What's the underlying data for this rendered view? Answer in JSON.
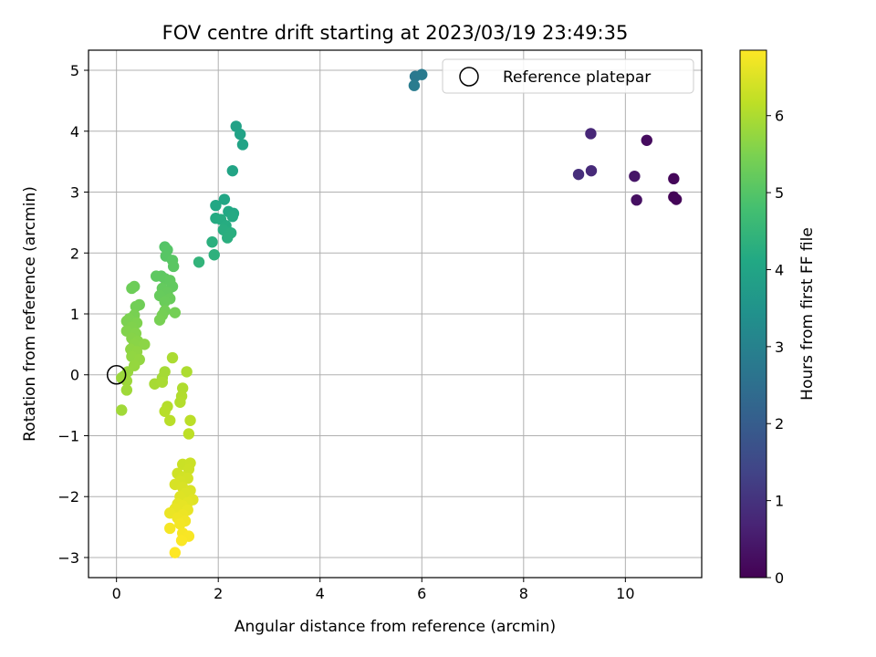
{
  "chart_data": {
    "type": "scatter",
    "title": "FOV centre drift starting at 2023/03/19 23:49:35",
    "xlabel": "Angular distance from reference (arcmin)",
    "ylabel": "Rotation from reference (arcmin)",
    "xlim": [
      -0.55,
      11.5
    ],
    "ylim": [
      -3.33,
      5.33
    ],
    "xticks": [
      0,
      2,
      4,
      6,
      8,
      10
    ],
    "yticks": [
      -3,
      -2,
      -1,
      0,
      1,
      2,
      3,
      4,
      5
    ],
    "grid": true,
    "legend": {
      "placement": "top-right",
      "entries": [
        "Reference platepar"
      ]
    },
    "reference_point": {
      "x": 0,
      "y": 0,
      "label": "Reference platepar"
    },
    "colorbar": {
      "label": "Hours from first FF file",
      "range": [
        0,
        6.85
      ],
      "ticks": [
        0,
        1,
        2,
        3,
        4,
        5,
        6
      ],
      "colormap": "viridis"
    },
    "points": [
      {
        "x": 10.95,
        "y": 2.92,
        "c": 0.05
      },
      {
        "x": 11.0,
        "y": 2.88,
        "c": 0.08
      },
      {
        "x": 10.95,
        "y": 3.22,
        "c": 0.12
      },
      {
        "x": 10.42,
        "y": 3.85,
        "c": 0.2
      },
      {
        "x": 10.22,
        "y": 2.87,
        "c": 0.3
      },
      {
        "x": 10.18,
        "y": 3.26,
        "c": 0.4
      },
      {
        "x": 9.32,
        "y": 3.96,
        "c": 0.75
      },
      {
        "x": 9.33,
        "y": 3.35,
        "c": 0.82
      },
      {
        "x": 9.08,
        "y": 3.29,
        "c": 0.9
      },
      {
        "x": 5.87,
        "y": 4.9,
        "c": 2.75
      },
      {
        "x": 6.0,
        "y": 4.93,
        "c": 2.8
      },
      {
        "x": 5.85,
        "y": 4.75,
        "c": 2.85
      },
      {
        "x": 2.35,
        "y": 4.08,
        "c": 3.9
      },
      {
        "x": 2.43,
        "y": 3.95,
        "c": 3.92
      },
      {
        "x": 2.48,
        "y": 3.78,
        "c": 3.95
      },
      {
        "x": 2.28,
        "y": 3.35,
        "c": 4.0
      },
      {
        "x": 2.12,
        "y": 2.88,
        "c": 4.05
      },
      {
        "x": 1.95,
        "y": 2.78,
        "c": 4.08
      },
      {
        "x": 2.2,
        "y": 2.68,
        "c": 4.1
      },
      {
        "x": 2.3,
        "y": 2.65,
        "c": 4.12
      },
      {
        "x": 2.28,
        "y": 2.6,
        "c": 4.15
      },
      {
        "x": 1.95,
        "y": 2.57,
        "c": 4.18
      },
      {
        "x": 2.05,
        "y": 2.55,
        "c": 4.2
      },
      {
        "x": 2.15,
        "y": 2.45,
        "c": 4.22
      },
      {
        "x": 2.1,
        "y": 2.38,
        "c": 4.25
      },
      {
        "x": 2.25,
        "y": 2.33,
        "c": 4.28
      },
      {
        "x": 2.18,
        "y": 2.25,
        "c": 4.3
      },
      {
        "x": 1.88,
        "y": 2.18,
        "c": 4.32
      },
      {
        "x": 1.92,
        "y": 1.97,
        "c": 4.35
      },
      {
        "x": 1.62,
        "y": 1.85,
        "c": 4.45
      },
      {
        "x": 0.95,
        "y": 2.1,
        "c": 5.0
      },
      {
        "x": 1.0,
        "y": 2.05,
        "c": 5.02
      },
      {
        "x": 0.97,
        "y": 1.95,
        "c": 5.04
      },
      {
        "x": 1.1,
        "y": 1.88,
        "c": 5.06
      },
      {
        "x": 1.12,
        "y": 1.78,
        "c": 5.08
      },
      {
        "x": 0.88,
        "y": 1.62,
        "c": 5.1
      },
      {
        "x": 0.78,
        "y": 1.62,
        "c": 5.12
      },
      {
        "x": 0.95,
        "y": 1.58,
        "c": 5.14
      },
      {
        "x": 1.05,
        "y": 1.55,
        "c": 5.16
      },
      {
        "x": 1.1,
        "y": 1.45,
        "c": 5.18
      },
      {
        "x": 0.9,
        "y": 1.42,
        "c": 5.2
      },
      {
        "x": 1.0,
        "y": 1.35,
        "c": 5.22
      },
      {
        "x": 0.85,
        "y": 1.3,
        "c": 5.24
      },
      {
        "x": 1.05,
        "y": 1.25,
        "c": 5.26
      },
      {
        "x": 0.95,
        "y": 1.2,
        "c": 5.28
      },
      {
        "x": 0.35,
        "y": 1.45,
        "c": 5.3
      },
      {
        "x": 0.3,
        "y": 1.42,
        "c": 5.32
      },
      {
        "x": 0.45,
        "y": 1.15,
        "c": 5.34
      },
      {
        "x": 0.38,
        "y": 1.12,
        "c": 5.36
      },
      {
        "x": 0.95,
        "y": 1.05,
        "c": 5.38
      },
      {
        "x": 1.15,
        "y": 1.02,
        "c": 5.4
      },
      {
        "x": 0.9,
        "y": 0.98,
        "c": 5.42
      },
      {
        "x": 0.85,
        "y": 0.9,
        "c": 5.44
      },
      {
        "x": 0.35,
        "y": 0.98,
        "c": 5.46
      },
      {
        "x": 0.25,
        "y": 0.92,
        "c": 5.48
      },
      {
        "x": 0.2,
        "y": 0.88,
        "c": 5.5
      },
      {
        "x": 0.4,
        "y": 0.85,
        "c": 5.52
      },
      {
        "x": 0.3,
        "y": 0.78,
        "c": 5.54
      },
      {
        "x": 0.2,
        "y": 0.72,
        "c": 5.56
      },
      {
        "x": 0.38,
        "y": 0.68,
        "c": 5.58
      },
      {
        "x": 0.3,
        "y": 0.6,
        "c": 5.6
      },
      {
        "x": 0.42,
        "y": 0.55,
        "c": 5.62
      },
      {
        "x": 0.35,
        "y": 0.5,
        "c": 5.64
      },
      {
        "x": 0.55,
        "y": 0.5,
        "c": 5.66
      },
      {
        "x": 0.28,
        "y": 0.42,
        "c": 5.68
      },
      {
        "x": 0.4,
        "y": 0.38,
        "c": 5.7
      },
      {
        "x": 0.3,
        "y": 0.3,
        "c": 5.72
      },
      {
        "x": 0.45,
        "y": 0.25,
        "c": 5.74
      },
      {
        "x": 0.35,
        "y": 0.15,
        "c": 5.76
      },
      {
        "x": 0.22,
        "y": 0.05,
        "c": 5.78
      },
      {
        "x": 0.15,
        "y": -0.02,
        "c": 5.8
      },
      {
        "x": 0.1,
        "y": -0.05,
        "c": 5.82
      },
      {
        "x": 0.2,
        "y": -0.1,
        "c": 5.84
      },
      {
        "x": 0.2,
        "y": -0.25,
        "c": 5.86
      },
      {
        "x": 0.1,
        "y": -0.58,
        "c": 5.88
      },
      {
        "x": 0.9,
        "y": -0.05,
        "c": 5.9
      },
      {
        "x": 0.95,
        "y": 0.05,
        "c": 5.92
      },
      {
        "x": 0.75,
        "y": -0.15,
        "c": 5.94
      },
      {
        "x": 0.9,
        "y": -0.12,
        "c": 5.96
      },
      {
        "x": 1.1,
        "y": 0.28,
        "c": 5.98
      },
      {
        "x": 1.38,
        "y": 0.05,
        "c": 6.0
      },
      {
        "x": 1.3,
        "y": -0.22,
        "c": 6.02
      },
      {
        "x": 1.28,
        "y": -0.35,
        "c": 6.04
      },
      {
        "x": 1.25,
        "y": -0.45,
        "c": 6.06
      },
      {
        "x": 1.0,
        "y": -0.52,
        "c": 6.08
      },
      {
        "x": 0.95,
        "y": -0.6,
        "c": 6.1
      },
      {
        "x": 1.05,
        "y": -0.75,
        "c": 6.12
      },
      {
        "x": 1.45,
        "y": -0.75,
        "c": 6.14
      },
      {
        "x": 1.42,
        "y": -0.97,
        "c": 6.16
      },
      {
        "x": 1.3,
        "y": -1.47,
        "c": 6.3
      },
      {
        "x": 1.45,
        "y": -1.45,
        "c": 6.32
      },
      {
        "x": 1.42,
        "y": -1.55,
        "c": 6.34
      },
      {
        "x": 1.2,
        "y": -1.62,
        "c": 6.36
      },
      {
        "x": 1.3,
        "y": -1.68,
        "c": 6.38
      },
      {
        "x": 1.4,
        "y": -1.7,
        "c": 6.4
      },
      {
        "x": 1.25,
        "y": -1.75,
        "c": 6.42
      },
      {
        "x": 1.15,
        "y": -1.8,
        "c": 6.44
      },
      {
        "x": 1.3,
        "y": -1.85,
        "c": 6.46
      },
      {
        "x": 1.45,
        "y": -1.9,
        "c": 6.48
      },
      {
        "x": 1.35,
        "y": -1.95,
        "c": 6.5
      },
      {
        "x": 1.25,
        "y": -2.0,
        "c": 6.52
      },
      {
        "x": 1.5,
        "y": -2.05,
        "c": 6.54
      },
      {
        "x": 1.4,
        "y": -2.1,
        "c": 6.56
      },
      {
        "x": 1.2,
        "y": -2.12,
        "c": 6.58
      },
      {
        "x": 1.3,
        "y": -2.15,
        "c": 6.6
      },
      {
        "x": 1.15,
        "y": -2.2,
        "c": 6.62
      },
      {
        "x": 1.4,
        "y": -2.22,
        "c": 6.64
      },
      {
        "x": 1.05,
        "y": -2.27,
        "c": 6.66
      },
      {
        "x": 1.3,
        "y": -2.3,
        "c": 6.68
      },
      {
        "x": 1.2,
        "y": -2.35,
        "c": 6.7
      },
      {
        "x": 1.35,
        "y": -2.4,
        "c": 6.72
      },
      {
        "x": 1.25,
        "y": -2.45,
        "c": 6.74
      },
      {
        "x": 1.05,
        "y": -2.52,
        "c": 6.76
      },
      {
        "x": 1.3,
        "y": -2.6,
        "c": 6.78
      },
      {
        "x": 1.42,
        "y": -2.65,
        "c": 6.8
      },
      {
        "x": 1.28,
        "y": -2.72,
        "c": 6.82
      },
      {
        "x": 1.15,
        "y": -2.92,
        "c": 6.85
      }
    ]
  }
}
